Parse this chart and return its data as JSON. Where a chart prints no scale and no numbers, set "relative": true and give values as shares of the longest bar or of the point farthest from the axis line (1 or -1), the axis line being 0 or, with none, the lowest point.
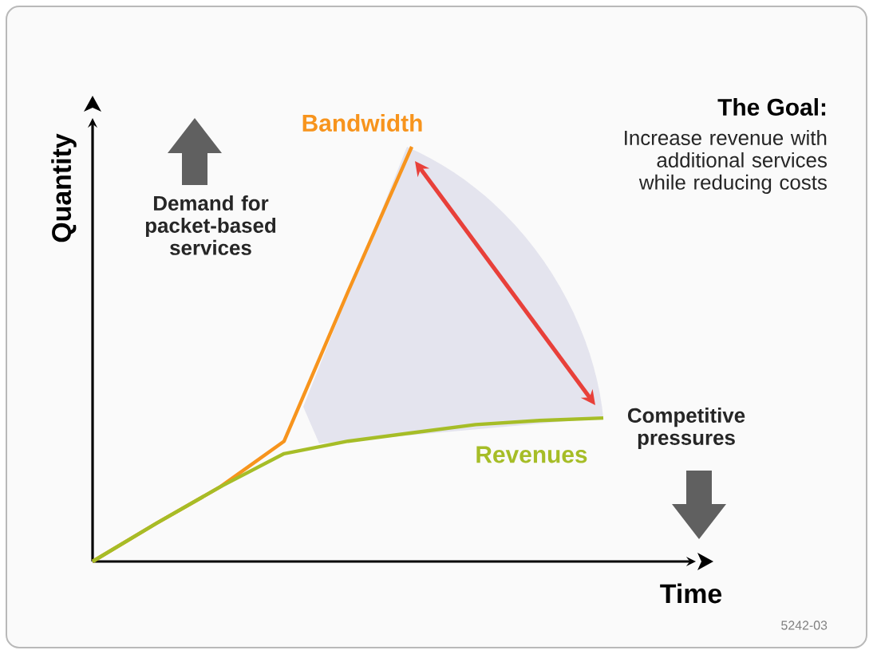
{
  "chart_data": {
    "type": "line",
    "relative": true,
    "title": "The Goal:",
    "xlabel": "Time",
    "ylabel": "Quantity",
    "annotations": [
      "Increase revenue with additional services while reducing costs",
      "Demand for packet-based services",
      "Competitive pressures",
      "5242-03"
    ],
    "categories": [
      null,
      null,
      null,
      null,
      null,
      null,
      null,
      null,
      null
    ],
    "series": [
      {
        "name": "Bandwidth",
        "color": "#f7941d",
        "values": [
          0,
          0.092,
          0.18,
          0.29,
          0.65,
          1,
          null,
          null,
          null
        ]
      },
      {
        "name": "Revenues",
        "color": "#a6bd27",
        "values": [
          0,
          0.092,
          0.18,
          0.26,
          0.29,
          0.31,
          0.33,
          0.34,
          0.346
        ]
      }
    ]
  }
}
